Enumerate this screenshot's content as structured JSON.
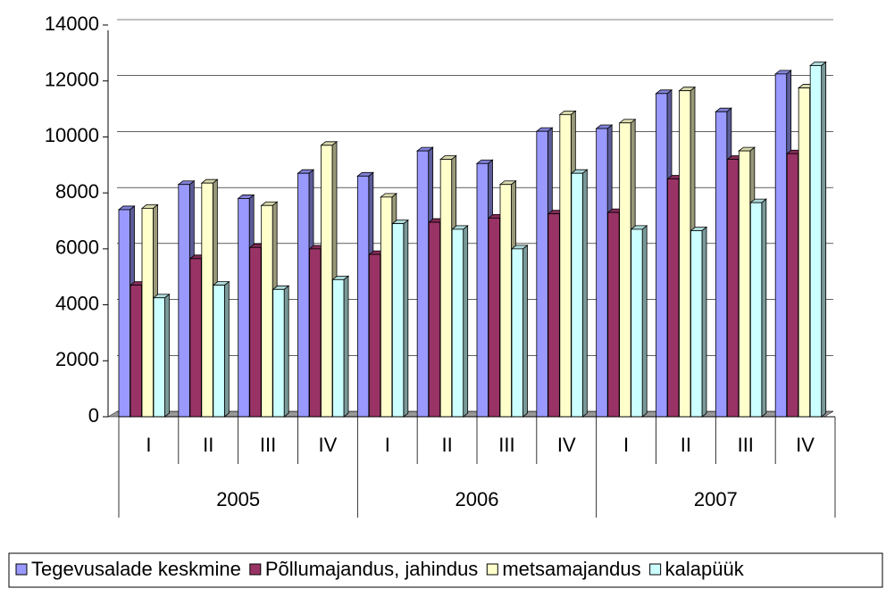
{
  "chart_data": {
    "type": "bar3d",
    "categories": [
      "I",
      "II",
      "III",
      "IV",
      "I",
      "II",
      "III",
      "IV",
      "I",
      "II",
      "III",
      "IV"
    ],
    "category_groups": [
      "2005",
      "2006",
      "2007"
    ],
    "series": [
      {
        "name": "Tegevusalade keskmine",
        "color": "#9999ff",
        "values": [
          7400,
          8300,
          7800,
          8700,
          8600,
          9500,
          9050,
          10200,
          10300,
          11550,
          10900,
          12250
        ]
      },
      {
        "name": "Põllumajandus, jahindus",
        "color": "#993366",
        "values": [
          4700,
          5650,
          6050,
          6000,
          5800,
          6950,
          7100,
          7250,
          7300,
          8500,
          9200,
          9400
        ]
      },
      {
        "name": "metsamajandus",
        "color": "#ffffcc",
        "values": [
          7450,
          8350,
          7550,
          9700,
          7850,
          9200,
          8300,
          10800,
          10500,
          11650,
          9500,
          11750
        ]
      },
      {
        "name": "kalapüük",
        "color": "#ccffff",
        "values": [
          4250,
          4700,
          4550,
          4900,
          6900,
          6700,
          6000,
          8700,
          6700,
          6650,
          7650,
          12550
        ]
      }
    ],
    "ylim": [
      0,
      14000
    ],
    "yticks": [
      0,
      2000,
      4000,
      6000,
      8000,
      10000,
      12000,
      14000
    ],
    "grid": true
  }
}
